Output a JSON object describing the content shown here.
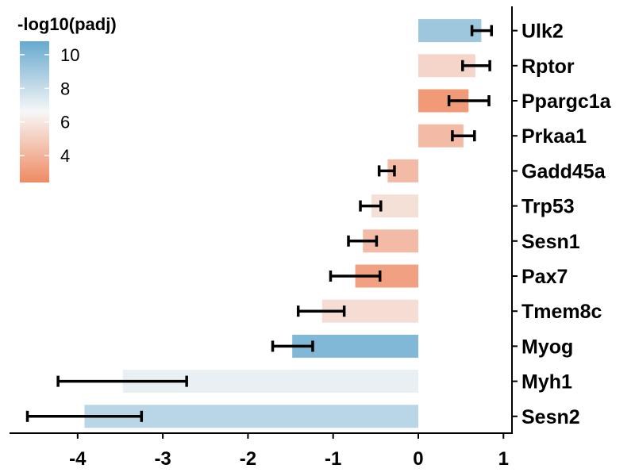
{
  "chart_data": {
    "type": "bar",
    "orientation": "horizontal",
    "categories": [
      "Ulk2",
      "Rptor",
      "Ppargc1a",
      "Prkaa1",
      "Gadd45a",
      "Trp53",
      "Sesn1",
      "Pax7",
      "Tmem8c",
      "Myog",
      "Myh1",
      "Sesn2"
    ],
    "values": [
      0.74,
      0.67,
      0.59,
      0.53,
      -0.36,
      -0.55,
      -0.65,
      -0.74,
      -1.13,
      -1.48,
      -3.47,
      -3.92
    ],
    "error_low": [
      0.63,
      0.52,
      0.36,
      0.4,
      -0.46,
      -0.68,
      -0.82,
      -1.03,
      -1.41,
      -1.71,
      -4.23,
      -4.59
    ],
    "error_high": [
      0.86,
      0.84,
      0.83,
      0.66,
      -0.28,
      -0.44,
      -0.49,
      -0.45,
      -0.87,
      -1.24,
      -2.72,
      -3.25
    ],
    "color_values": [
      9.2,
      5.3,
      3.0,
      4.3,
      4.3,
      5.7,
      4.3,
      3.3,
      5.6,
      10.0,
      7.0,
      8.4
    ],
    "xlim": [
      -4.8,
      1.1
    ],
    "xticks": [
      "-4",
      "-3",
      "-2",
      "-1",
      "0",
      "1"
    ],
    "xlabel": "",
    "ylabel": "",
    "legend": {
      "title": "-log10(padj)",
      "labels": [
        "10",
        "8",
        "6",
        "4"
      ],
      "range": [
        2.4,
        10.8
      ],
      "colors": {
        "low": "#ef8a62",
        "mid": "#f7f7f7",
        "high": "#67a9cf"
      },
      "placement": "top-left"
    },
    "grid": false
  }
}
